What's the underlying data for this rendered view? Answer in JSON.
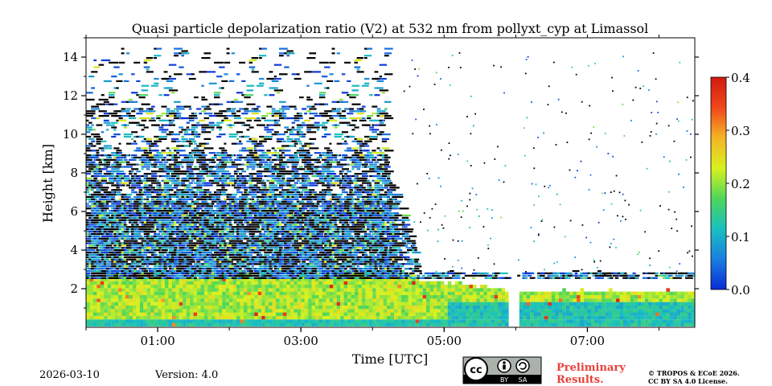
{
  "chart_data": {
    "type": "heatmap",
    "title": "Quasi particle depolarization ratio (V2) at 532 nm from pollyxt_cyp at Limassol",
    "xlabel": "Time [UTC]",
    "ylabel": "Height [km]",
    "xlim_hours": [
      0,
      8.5
    ],
    "ylim_km": [
      0,
      15
    ],
    "x_ticks": [
      {
        "value": 1,
        "label": "01:00"
      },
      {
        "value": 3,
        "label": "03:00"
      },
      {
        "value": 5,
        "label": "05:00"
      },
      {
        "value": 7,
        "label": "07:00"
      }
    ],
    "y_ticks": [
      {
        "value": 2,
        "label": "2"
      },
      {
        "value": 4,
        "label": "4"
      },
      {
        "value": 6,
        "label": "6"
      },
      {
        "value": 8,
        "label": "8"
      },
      {
        "value": 10,
        "label": "10"
      },
      {
        "value": 12,
        "label": "12"
      },
      {
        "value": 14,
        "label": "14"
      }
    ],
    "colorbar": {
      "min": 0.0,
      "max": 0.4,
      "ticks": [
        "0.0",
        "0.1",
        "0.2",
        "0.3",
        "0.4"
      ],
      "colors": [
        "#0a2bd6",
        "#1a7fe0",
        "#19c0c0",
        "#4fd65a",
        "#d8f21e",
        "#f5b325",
        "#f0471c",
        "#d11a10"
      ]
    },
    "data_gap_hours": [
      5.85,
      6.02
    ],
    "layers": [
      {
        "name": "boundary layer aerosol",
        "height_km": [
          0,
          2.6
        ],
        "time_h": [
          0,
          8.5
        ],
        "depol_approx": 0.2
      },
      {
        "name": "noisy upper signal",
        "height_km": [
          2.6,
          10
        ],
        "time_h": [
          0,
          4.5
        ],
        "depol_approx": 0.05
      }
    ]
  },
  "footer": {
    "date": "2026-03-10",
    "version": "Version: 4.0",
    "license_badge": "CC BY SA",
    "license_short": [
      "BY",
      "SA"
    ],
    "preliminary": [
      "Preliminary",
      "Results."
    ],
    "copyright": [
      "© TROPOS & ECoE 2026.",
      "CC BY SA 4.0 License."
    ]
  }
}
